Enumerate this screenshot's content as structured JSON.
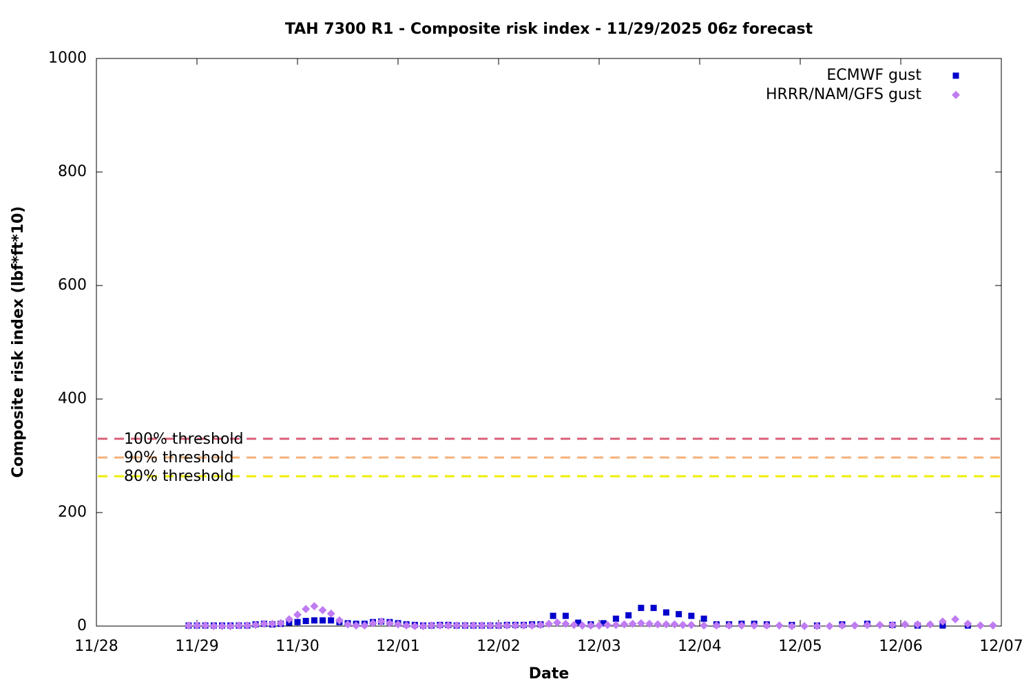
{
  "chart_data": {
    "type": "scatter",
    "title": "TAH 7300 R1 - Composite risk index - 11/29/2025 06z forecast",
    "x_label": "Date",
    "y_label": "Composite risk index (lbf*ft*10)",
    "xlim": [
      0,
      9
    ],
    "xticks": [
      {
        "value": 0,
        "label": "11/28"
      },
      {
        "value": 1,
        "label": "11/29"
      },
      {
        "value": 2,
        "label": "11/30"
      },
      {
        "value": 3,
        "label": "12/01"
      },
      {
        "value": 4,
        "label": "12/02"
      },
      {
        "value": 5,
        "label": "12/03"
      },
      {
        "value": 6,
        "label": "12/04"
      },
      {
        "value": 7,
        "label": "12/05"
      },
      {
        "value": 8,
        "label": "12/06"
      },
      {
        "value": 9,
        "label": "12/07"
      }
    ],
    "ylim": [
      0,
      1000
    ],
    "yticks": [
      0,
      200,
      400,
      600,
      800,
      1000
    ],
    "grid": false,
    "legend": "top-right",
    "thresholds": [
      {
        "label": "100% threshold",
        "value": 330,
        "color": "#d9607a"
      },
      {
        "label": "90% threshold",
        "value": 297,
        "color": "#f5b07a"
      },
      {
        "label": "80% threshold",
        "value": 264,
        "color": "#eeee00"
      }
    ],
    "series": [
      {
        "name": "ECMWF gust",
        "color": "#0000cc",
        "marker": "square",
        "x": [
          0.917,
          1.0,
          1.083,
          1.167,
          1.25,
          1.333,
          1.417,
          1.5,
          1.583,
          1.667,
          1.75,
          1.833,
          1.917,
          2.0,
          2.083,
          2.167,
          2.25,
          2.333,
          2.417,
          2.5,
          2.583,
          2.667,
          2.75,
          2.833,
          2.917,
          3.0,
          3.083,
          3.167,
          3.25,
          3.333,
          3.417,
          3.5,
          3.583,
          3.667,
          3.75,
          3.833,
          3.917,
          4.0,
          4.083,
          4.167,
          4.25,
          4.333,
          4.417,
          4.542,
          4.667,
          4.792,
          4.917,
          5.042,
          5.167,
          5.292,
          5.417,
          5.542,
          5.667,
          5.792,
          5.917,
          6.042,
          6.167,
          6.292,
          6.417,
          6.542,
          6.667,
          6.917,
          7.167,
          7.417,
          7.667,
          7.917,
          8.167,
          8.417,
          8.667
        ],
        "values": [
          1,
          1,
          1,
          1,
          1,
          1,
          1,
          1,
          3,
          4,
          3,
          4,
          6,
          7,
          9,
          10,
          10,
          10,
          7,
          5,
          4,
          4,
          7,
          8,
          7,
          5,
          3,
          2,
          1,
          1,
          2,
          2,
          1,
          1,
          1,
          1,
          1,
          1,
          2,
          2,
          2,
          3,
          3,
          18,
          18,
          6,
          3,
          5,
          13,
          19,
          32,
          32,
          24,
          21,
          18,
          13,
          3,
          3,
          4,
          4,
          3,
          2,
          1,
          3,
          4,
          2,
          1,
          1,
          1
        ]
      },
      {
        "name": "HRRR/NAM/GFS gust",
        "color": "#bf7cf2",
        "marker": "diamond",
        "x": [
          0.917,
          1.0,
          1.083,
          1.167,
          1.25,
          1.333,
          1.417,
          1.5,
          1.583,
          1.667,
          1.75,
          1.833,
          1.917,
          2.0,
          2.083,
          2.167,
          2.25,
          2.333,
          2.417,
          2.5,
          2.583,
          2.667,
          2.75,
          2.833,
          2.917,
          3.0,
          3.083,
          3.167,
          3.25,
          3.333,
          3.417,
          3.5,
          3.583,
          3.667,
          3.75,
          3.833,
          3.917,
          4.0,
          4.083,
          4.167,
          4.25,
          4.333,
          4.417,
          4.5,
          4.583,
          4.667,
          4.75,
          4.833,
          4.917,
          5.0,
          5.083,
          5.167,
          5.25,
          5.333,
          5.417,
          5.5,
          5.583,
          5.667,
          5.75,
          5.833,
          5.917,
          6.042,
          6.167,
          6.292,
          6.417,
          6.542,
          6.667,
          6.792,
          6.917,
          7.042,
          7.167,
          7.292,
          7.417,
          7.542,
          7.667,
          7.792,
          7.917,
          8.042,
          8.167,
          8.292,
          8.417,
          8.542,
          8.667,
          8.792,
          8.917
        ],
        "values": [
          1,
          1,
          1,
          0,
          0,
          0,
          1,
          1,
          2,
          4,
          4,
          5,
          12,
          20,
          30,
          35,
          28,
          22,
          10,
          3,
          1,
          1,
          5,
          8,
          5,
          3,
          1,
          0,
          0,
          1,
          1,
          1,
          1,
          1,
          1,
          1,
          1,
          1,
          1,
          1,
          1,
          1,
          2,
          4,
          6,
          4,
          2,
          1,
          1,
          1,
          2,
          2,
          3,
          4,
          5,
          4,
          3,
          3,
          3,
          2,
          2,
          1,
          1,
          1,
          1,
          1,
          1,
          1,
          0,
          0,
          0,
          0,
          1,
          1,
          2,
          2,
          2,
          3,
          3,
          3,
          8,
          12,
          4,
          1,
          1
        ]
      }
    ]
  }
}
